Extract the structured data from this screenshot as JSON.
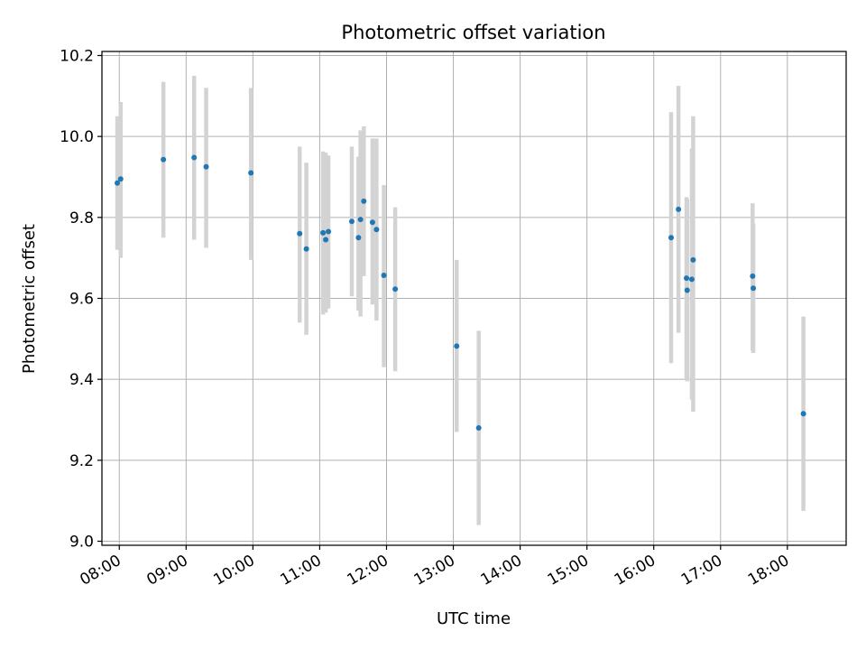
{
  "chart_data": {
    "type": "scatter",
    "title": "Photometric offset variation",
    "xlabel": "UTC time",
    "ylabel": "Photometric offset",
    "grid": true,
    "xlim": [
      7.74,
      18.88
    ],
    "ylim": [
      8.99,
      10.21
    ],
    "x_ticks": [
      {
        "value": 8,
        "label": "08:00"
      },
      {
        "value": 9,
        "label": "09:00"
      },
      {
        "value": 10,
        "label": "10:00"
      },
      {
        "value": 11,
        "label": "11:00"
      },
      {
        "value": 12,
        "label": "12:00"
      },
      {
        "value": 13,
        "label": "13:00"
      },
      {
        "value": 14,
        "label": "14:00"
      },
      {
        "value": 15,
        "label": "15:00"
      },
      {
        "value": 16,
        "label": "16:00"
      },
      {
        "value": 17,
        "label": "17:00"
      },
      {
        "value": 18,
        "label": "18:00"
      }
    ],
    "y_ticks": [
      {
        "value": 9.0,
        "label": "9.0"
      },
      {
        "value": 9.2,
        "label": "9.2"
      },
      {
        "value": 9.4,
        "label": "9.4"
      },
      {
        "value": 9.6,
        "label": "9.6"
      },
      {
        "value": 9.8,
        "label": "9.8"
      },
      {
        "value": 10.0,
        "label": "10.0"
      },
      {
        "value": 10.2,
        "label": "10.2"
      }
    ],
    "point_color": "#1f77b4",
    "errorbar_color": "#d3d3d3",
    "points": [
      {
        "x": 7.97,
        "y": 9.885,
        "ylo": 9.72,
        "yhi": 10.05
      },
      {
        "x": 8.02,
        "y": 9.895,
        "ylo": 9.7,
        "yhi": 10.085
      },
      {
        "x": 8.66,
        "y": 9.943,
        "ylo": 9.75,
        "yhi": 10.135
      },
      {
        "x": 9.12,
        "y": 9.948,
        "ylo": 9.745,
        "yhi": 10.15
      },
      {
        "x": 9.3,
        "y": 9.925,
        "ylo": 9.725,
        "yhi": 10.12
      },
      {
        "x": 9.97,
        "y": 9.91,
        "ylo": 9.695,
        "yhi": 10.12
      },
      {
        "x": 10.7,
        "y": 9.76,
        "ylo": 9.54,
        "yhi": 9.975
      },
      {
        "x": 10.8,
        "y": 9.722,
        "ylo": 9.51,
        "yhi": 9.935
      },
      {
        "x": 11.05,
        "y": 9.762,
        "ylo": 9.56,
        "yhi": 9.963
      },
      {
        "x": 11.09,
        "y": 9.745,
        "ylo": 9.565,
        "yhi": 9.96
      },
      {
        "x": 11.13,
        "y": 9.765,
        "ylo": 9.575,
        "yhi": 9.953
      },
      {
        "x": 11.48,
        "y": 9.79,
        "ylo": 9.605,
        "yhi": 9.975
      },
      {
        "x": 11.58,
        "y": 9.75,
        "ylo": 9.57,
        "yhi": 9.95
      },
      {
        "x": 11.61,
        "y": 9.795,
        "ylo": 9.555,
        "yhi": 10.015
      },
      {
        "x": 11.66,
        "y": 9.84,
        "ylo": 9.655,
        "yhi": 10.025
      },
      {
        "x": 11.79,
        "y": 9.788,
        "ylo": 9.585,
        "yhi": 9.995
      },
      {
        "x": 11.85,
        "y": 9.77,
        "ylo": 9.545,
        "yhi": 9.995
      },
      {
        "x": 11.96,
        "y": 9.657,
        "ylo": 9.43,
        "yhi": 9.88
      },
      {
        "x": 12.13,
        "y": 9.623,
        "ylo": 9.42,
        "yhi": 9.825
      },
      {
        "x": 13.05,
        "y": 9.482,
        "ylo": 9.27,
        "yhi": 9.695
      },
      {
        "x": 13.38,
        "y": 9.28,
        "ylo": 9.04,
        "yhi": 9.52
      },
      {
        "x": 16.26,
        "y": 9.75,
        "ylo": 9.44,
        "yhi": 10.06
      },
      {
        "x": 16.37,
        "y": 9.82,
        "ylo": 9.515,
        "yhi": 10.125
      },
      {
        "x": 16.49,
        "y": 9.65,
        "ylo": 9.4,
        "yhi": 9.85
      },
      {
        "x": 16.5,
        "y": 9.62,
        "ylo": 9.395,
        "yhi": 9.845
      },
      {
        "x": 16.57,
        "y": 9.647,
        "ylo": 9.35,
        "yhi": 9.97
      },
      {
        "x": 16.59,
        "y": 9.695,
        "ylo": 9.32,
        "yhi": 10.05
      },
      {
        "x": 17.48,
        "y": 9.655,
        "ylo": 9.47,
        "yhi": 9.835
      },
      {
        "x": 17.49,
        "y": 9.625,
        "ylo": 9.465,
        "yhi": 9.785
      },
      {
        "x": 18.24,
        "y": 9.315,
        "ylo": 9.075,
        "yhi": 9.555
      }
    ]
  }
}
